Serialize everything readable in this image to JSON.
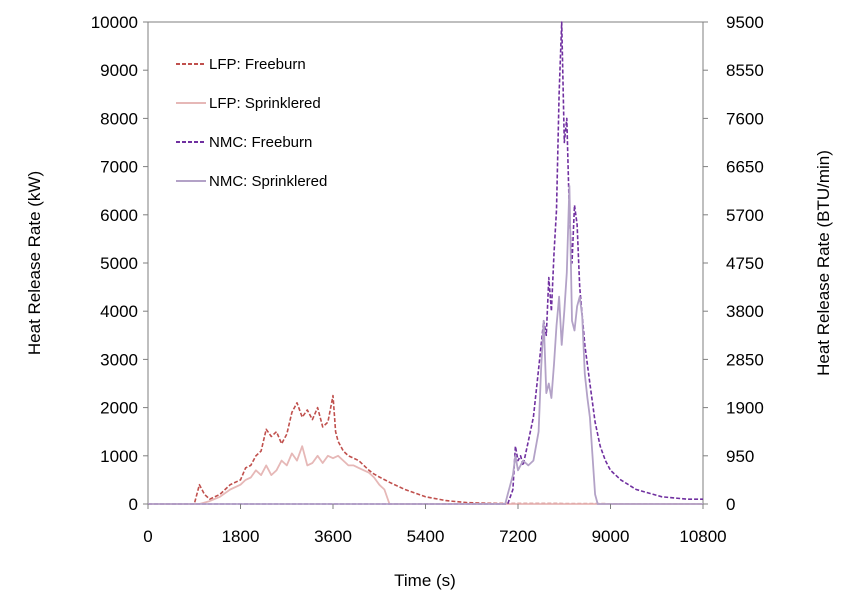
{
  "chart_data": {
    "type": "line",
    "title": "",
    "xlabel": "Time (s)",
    "ylabel": "Heat Release Rate (kW)",
    "y2label": "Heat Release Rate (BTU/min)",
    "xlim": [
      0,
      10800
    ],
    "ylim": [
      0,
      10000
    ],
    "y2lim": [
      0,
      9500
    ],
    "x_ticks": [
      "0",
      "1800",
      "3600",
      "5400",
      "7200",
      "9000",
      "10800"
    ],
    "y_ticks": [
      "0",
      "1000",
      "2000",
      "3000",
      "4000",
      "5000",
      "6000",
      "7000",
      "8000",
      "9000",
      "10000"
    ],
    "y2_ticks": [
      "0",
      "950",
      "1900",
      "2850",
      "3800",
      "4750",
      "5700",
      "6650",
      "7600",
      "8550",
      "9500"
    ],
    "grid": false,
    "legend_position": "top-left",
    "series": [
      {
        "name": "LFP: Freeburn",
        "color": "#c0504d",
        "dash": "dashed",
        "x": [
          0,
          900,
          1000,
          1100,
          1200,
          1400,
          1600,
          1800,
          1900,
          2000,
          2100,
          2200,
          2300,
          2400,
          2500,
          2600,
          2700,
          2800,
          2900,
          3000,
          3100,
          3200,
          3300,
          3400,
          3500,
          3600,
          3650,
          3700,
          3800,
          3900,
          4000,
          4100,
          4200,
          4300,
          4400,
          4500,
          4700,
          5000,
          5400,
          5800,
          6200,
          6600,
          7000,
          7200,
          10800
        ],
        "y": [
          0,
          0,
          400,
          200,
          100,
          200,
          400,
          500,
          750,
          800,
          1000,
          1100,
          1550,
          1400,
          1500,
          1250,
          1450,
          1900,
          2100,
          1800,
          1950,
          1750,
          2000,
          1600,
          1700,
          2250,
          1500,
          1300,
          1100,
          1000,
          950,
          900,
          800,
          700,
          620,
          560,
          450,
          300,
          150,
          70,
          30,
          15,
          10,
          10,
          0
        ]
      },
      {
        "name": "LFP: Sprinklered",
        "color": "#e6b8b7",
        "dash": "solid",
        "x": [
          0,
          1000,
          1200,
          1400,
          1600,
          1800,
          1900,
          2000,
          2100,
          2200,
          2300,
          2400,
          2500,
          2600,
          2700,
          2800,
          2900,
          3000,
          3100,
          3200,
          3300,
          3400,
          3500,
          3600,
          3700,
          3800,
          3900,
          4000,
          4100,
          4200,
          4300,
          4400,
          4500,
          4600,
          4700,
          10800
        ],
        "y": [
          0,
          0,
          60,
          150,
          300,
          400,
          500,
          550,
          700,
          600,
          800,
          600,
          700,
          900,
          800,
          1050,
          900,
          1200,
          800,
          850,
          1000,
          850,
          1000,
          950,
          1000,
          900,
          800,
          800,
          750,
          700,
          650,
          550,
          400,
          300,
          0,
          0
        ]
      },
      {
        "name": "NMC: Freeburn",
        "color": "#7030a0",
        "dash": "dashed",
        "x": [
          0,
          6800,
          7000,
          7100,
          7150,
          7200,
          7250,
          7300,
          7400,
          7500,
          7600,
          7700,
          7750,
          7800,
          7850,
          7900,
          7950,
          8000,
          8050,
          8100,
          8150,
          8200,
          8250,
          8300,
          8350,
          8400,
          8500,
          8600,
          8700,
          8800,
          8900,
          9000,
          9200,
          9500,
          10000,
          10500,
          10800
        ],
        "y": [
          0,
          0,
          0,
          300,
          1200,
          900,
          1000,
          800,
          1300,
          1800,
          2800,
          3800,
          3500,
          4700,
          4000,
          5200,
          6100,
          8500,
          10000,
          7500,
          8000,
          6000,
          5000,
          6200,
          5800,
          4500,
          3300,
          2500,
          1700,
          1200,
          900,
          700,
          500,
          300,
          150,
          100,
          100
        ]
      },
      {
        "name": "NMC: Sprinklered",
        "color": "#b3a2c7",
        "dash": "solid",
        "x": [
          0,
          6950,
          7000,
          7100,
          7150,
          7200,
          7300,
          7400,
          7500,
          7600,
          7650,
          7700,
          7750,
          7800,
          7850,
          7900,
          7950,
          8000,
          8050,
          8100,
          8150,
          8200,
          8250,
          8300,
          8350,
          8400,
          8450,
          8500,
          8550,
          8600,
          8650,
          8700,
          8750,
          10800
        ],
        "y": [
          0,
          0,
          200,
          600,
          1000,
          700,
          900,
          800,
          900,
          1500,
          2800,
          3800,
          2300,
          2500,
          2200,
          2900,
          3700,
          4300,
          3300,
          4000,
          4800,
          6600,
          3800,
          3600,
          4100,
          4300,
          3900,
          2700,
          2200,
          1800,
          1000,
          200,
          0,
          0
        ]
      }
    ]
  }
}
